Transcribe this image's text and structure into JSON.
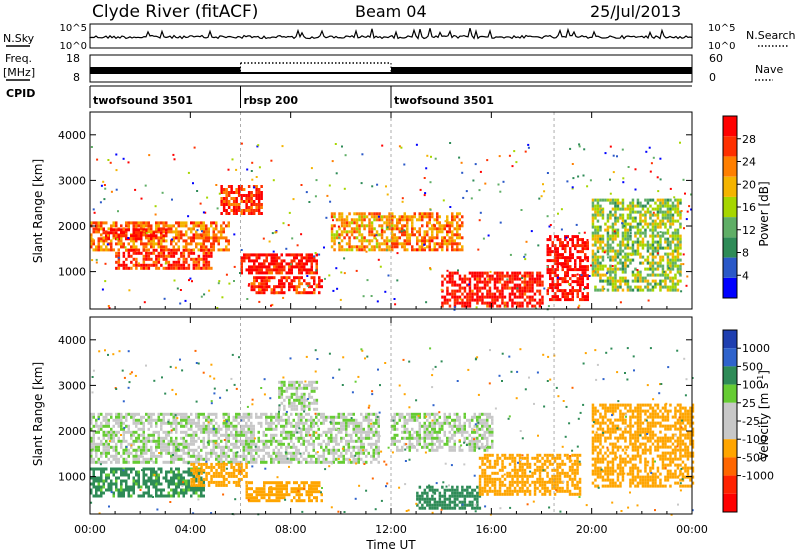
{
  "header": {
    "station": "Clyde River (fitACF)",
    "beam": "Beam 04",
    "date": "25/Jul/2013"
  },
  "noise_panel": {
    "left_label": "N.Sky",
    "right_label": "N.Search",
    "left_ticks": [
      "10^5",
      "10^0"
    ],
    "right_ticks": [
      "10^5",
      "10^0"
    ]
  },
  "freq_panel": {
    "left_label_1": "Freq.",
    "left_label_2": "[MHz]",
    "right_label": "Nave",
    "left_ticks": [
      "18",
      "8"
    ],
    "right_ticks": [
      "60",
      "0"
    ]
  },
  "cpid_panel": {
    "label": "CPID",
    "segments": [
      {
        "name": "twofsound 3501",
        "start_hour": 0,
        "end_hour": 6
      },
      {
        "name": "rbsp 200",
        "start_hour": 6,
        "end_hour": 12
      },
      {
        "name": "twofsound 3501",
        "start_hour": 12,
        "end_hour": 24
      }
    ]
  },
  "xaxis": {
    "label": "Time UT",
    "ticks": [
      "00:00",
      "04:00",
      "08:00",
      "12:00",
      "16:00",
      "20:00",
      "00:00"
    ],
    "range_hours": [
      0,
      24
    ]
  },
  "colors": {
    "power_scale": [
      "#0000ff",
      "#2a58c8",
      "#2e8b57",
      "#5fae66",
      "#a6d600",
      "#f4b400",
      "#ff7f00",
      "#ff3000",
      "#ff0000"
    ],
    "velocity_scale": [
      "#1f3fb0",
      "#2f63cc",
      "#2e8b57",
      "#66cc33",
      "#c8c8c8",
      "#c8c8c8",
      "#ffa500",
      "#ff6600",
      "#ff2200",
      "#ff0000"
    ],
    "ground_scatter": "#c8c8c8"
  },
  "chart_data": [
    {
      "type": "heatmap",
      "panel": "power",
      "ylabel": "Slant Range [km]",
      "yticks": [
        "1000",
        "2000",
        "3000",
        "4000"
      ],
      "ylim": [
        180,
        4500
      ],
      "colorbar_label": "Power [dB]",
      "colorbar_ticks": [
        "4",
        "8",
        "12",
        "16",
        "20",
        "24",
        "28"
      ],
      "colorbar_range": [
        0,
        30
      ],
      "features": [
        {
          "t0": 0.0,
          "t1": 5.5,
          "r0": 1500,
          "r1": 2100,
          "level": 22
        },
        {
          "t0": 1.0,
          "t1": 4.8,
          "r0": 1050,
          "r1": 1500,
          "level": 26
        },
        {
          "t0": 0.3,
          "t1": 3.0,
          "r0": 1700,
          "r1": 1950,
          "level": 28
        },
        {
          "t0": 5.2,
          "t1": 6.8,
          "r0": 2300,
          "r1": 2900,
          "level": 26
        },
        {
          "t0": 6.0,
          "t1": 9.0,
          "r0": 1000,
          "r1": 1400,
          "level": 28
        },
        {
          "t0": 6.4,
          "t1": 9.2,
          "r0": 550,
          "r1": 900,
          "level": 27
        },
        {
          "t0": 9.6,
          "t1": 12.0,
          "r0": 1500,
          "r1": 2300,
          "level": 20
        },
        {
          "t0": 12.0,
          "t1": 14.8,
          "r0": 1500,
          "r1": 2300,
          "level": 22
        },
        {
          "t0": 14.0,
          "t1": 18.0,
          "r0": 250,
          "r1": 1000,
          "level": 28
        },
        {
          "t0": 18.2,
          "t1": 19.8,
          "r0": 400,
          "r1": 1800,
          "level": 29
        },
        {
          "t0": 20.0,
          "t1": 23.5,
          "r0": 600,
          "r1": 2600,
          "level": 14
        }
      ]
    },
    {
      "type": "heatmap",
      "panel": "velocity",
      "ylabel": "Slant Range [km]",
      "yticks": [
        "1000",
        "2000",
        "3000",
        "4000"
      ],
      "ylim": [
        180,
        4500
      ],
      "colorbar_label": "Velocity [m s^-1]",
      "colorbar_ticks": [
        "1000",
        "500",
        "100",
        "25",
        "-25",
        "-100",
        "-500",
        "-1000"
      ],
      "colorbar_range": [
        -1200,
        1200
      ],
      "features": [
        {
          "t0": 0.0,
          "t1": 11.5,
          "r0": 1300,
          "r1": 2400,
          "level": 0
        },
        {
          "t0": 0.0,
          "t1": 4.5,
          "r0": 600,
          "r1": 1200,
          "level": 150
        },
        {
          "t0": 4.0,
          "t1": 6.2,
          "r0": 800,
          "r1": 1300,
          "level": -300
        },
        {
          "t0": 6.2,
          "t1": 9.2,
          "r0": 500,
          "r1": 900,
          "level": -250
        },
        {
          "t0": 7.5,
          "t1": 9.0,
          "r0": 2500,
          "r1": 3100,
          "level": 0
        },
        {
          "t0": 12.0,
          "t1": 16.0,
          "r0": 1600,
          "r1": 2400,
          "level": 0
        },
        {
          "t0": 13.0,
          "t1": 15.5,
          "r0": 300,
          "r1": 800,
          "level": 200
        },
        {
          "t0": 15.5,
          "t1": 19.5,
          "r0": 600,
          "r1": 1500,
          "level": -400
        },
        {
          "t0": 20.0,
          "t1": 24.0,
          "r0": 800,
          "r1": 2600,
          "level": -300
        }
      ]
    }
  ]
}
